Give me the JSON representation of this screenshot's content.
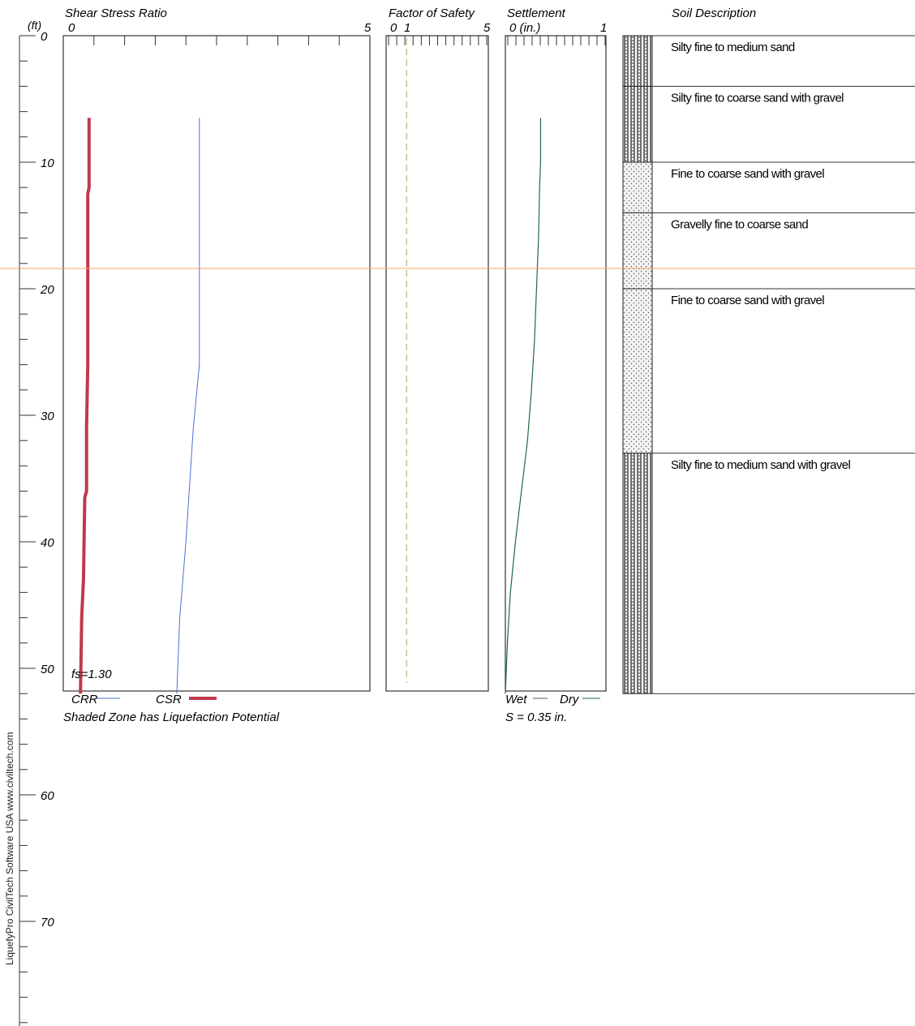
{
  "software_credit": "LiquefyPro    CivilTech Software USA    www.civiltech.com",
  "depth_axis": {
    "unit_label": "(ft)",
    "range": [
      0,
      78
    ],
    "major_ticks": [
      0,
      10,
      20,
      30,
      40,
      50,
      60,
      70
    ],
    "minor_step": 2
  },
  "water_table": {
    "depth_ft": 18.4,
    "color": "#f5a35a"
  },
  "colors": {
    "crr": "#c0394a",
    "csr": "#4a6fd6",
    "settlement": "#1f6b3e",
    "fs_line": "#b9b07a",
    "frame": "#333333"
  },
  "chart_data": [
    {
      "type": "line",
      "title": "Shear Stress Ratio",
      "x_tick_labels": [
        "0",
        "5"
      ],
      "xlim": [
        0,
        5
      ],
      "ylim": [
        0,
        52
      ],
      "y_reversed": true,
      "annotation": "fs=1.30",
      "legend_crr": "CRR",
      "legend_csr": "CSR",
      "note": "Shaded Zone has Liquefaction Potential",
      "series": [
        {
          "name": "CRR",
          "points": [
            [
              0.42,
              6.5
            ],
            [
              0.42,
              12
            ],
            [
              0.4,
              12.5
            ],
            [
              0.4,
              26
            ],
            [
              0.38,
              31
            ],
            [
              0.38,
              36
            ],
            [
              0.35,
              36.5
            ],
            [
              0.33,
              43
            ],
            [
              0.3,
              46
            ],
            [
              0.28,
              52
            ]
          ]
        },
        {
          "name": "CSR",
          "points": [
            [
              2.22,
              6.5
            ],
            [
              2.22,
              26
            ],
            [
              2.12,
              31
            ],
            [
              2.0,
              40
            ],
            [
              1.9,
              46
            ],
            [
              1.85,
              52
            ]
          ]
        }
      ]
    },
    {
      "type": "line",
      "title": "Factor of Safety",
      "x_tick_labels": [
        "0",
        "1",
        "5"
      ],
      "xlim": [
        0,
        5
      ],
      "fs_reference": 1
    },
    {
      "type": "line",
      "title": "Settlement",
      "x_tick_labels": [
        "0 (in.)",
        "1"
      ],
      "xlim": [
        0,
        1
      ],
      "ylim": [
        0,
        52
      ],
      "legend_wet": "Wet",
      "legend_dry": "Dry",
      "total": "S = 0.35 in.",
      "series": [
        {
          "name": "Dry",
          "points": [
            [
              0.35,
              6.5
            ],
            [
              0.35,
              10
            ],
            [
              0.34,
              12
            ],
            [
              0.33,
              16
            ],
            [
              0.31,
              20
            ],
            [
              0.29,
              24
            ],
            [
              0.26,
              28
            ],
            [
              0.22,
              32
            ],
            [
              0.16,
              36
            ],
            [
              0.1,
              40
            ],
            [
              0.05,
              44
            ],
            [
              0.02,
              48
            ],
            [
              0,
              52
            ]
          ]
        }
      ]
    }
  ],
  "soil_column": {
    "title": "Soil Description",
    "layers": [
      {
        "from": 0,
        "to": 4,
        "pattern": "silty",
        "label": "Silty fine to medium sand"
      },
      {
        "from": 4,
        "to": 10,
        "pattern": "silty",
        "label": "Silty fine to coarse sand with gravel"
      },
      {
        "from": 10,
        "to": 14,
        "pattern": "sand",
        "label": "Fine to coarse sand with gravel"
      },
      {
        "from": 14,
        "to": 20,
        "pattern": "sand",
        "label": "Gravelly fine to coarse sand"
      },
      {
        "from": 20,
        "to": 33,
        "pattern": "sand",
        "label": "Fine to coarse sand with gravel"
      },
      {
        "from": 33,
        "to": 52,
        "pattern": "silty",
        "label": "Silty fine to medium sand with gravel"
      }
    ]
  }
}
